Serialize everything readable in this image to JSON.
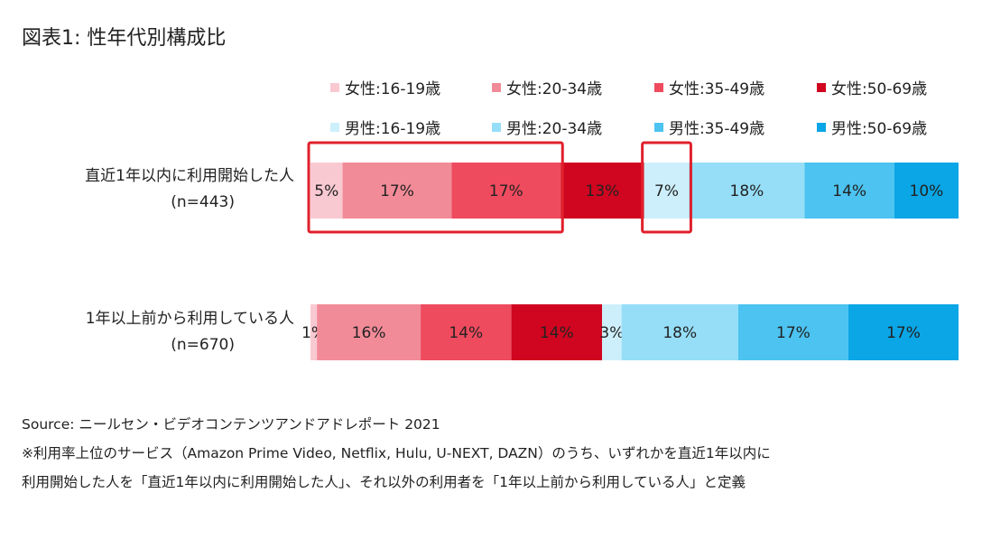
{
  "title": "図表1: 性年代別構成比",
  "chart_data": {
    "type": "bar",
    "stacked": "100%",
    "orientation": "horizontal",
    "categories": [
      {
        "label": "直近1年以内に利用開始した人",
        "n": "(n=443)"
      },
      {
        "label": "1年以上前から利用している人",
        "n": "(n=670)"
      }
    ],
    "series": [
      {
        "name": "女性:16-19歳",
        "color": "#f9c9d2",
        "values": [
          5,
          1
        ],
        "labels": [
          "5%",
          "1%"
        ]
      },
      {
        "name": "女性:20-34歳",
        "color": "#f28b98",
        "values": [
          17,
          16
        ],
        "labels": [
          "17%",
          "16%"
        ]
      },
      {
        "name": "女性:35-49歳",
        "color": "#ef4b5e",
        "values": [
          17,
          14
        ],
        "labels": [
          "17%",
          "14%"
        ]
      },
      {
        "name": "女性:50-69歳",
        "color": "#d0051f",
        "values": [
          13,
          14
        ],
        "labels": [
          "13%",
          "14%"
        ]
      },
      {
        "name": "男性:16-19歳",
        "color": "#cdeffc",
        "values": [
          7,
          3
        ],
        "labels": [
          "7%",
          "3%"
        ]
      },
      {
        "name": "男性:20-34歳",
        "color": "#96def8",
        "values": [
          18,
          18
        ],
        "labels": [
          "18%",
          "18%"
        ]
      },
      {
        "name": "男性:35-49歳",
        "color": "#4cc3f0",
        "values": [
          14,
          17
        ],
        "labels": [
          "14%",
          "17%"
        ]
      },
      {
        "name": "男性:50-69歳",
        "color": "#0aa6e6",
        "values": [
          10,
          17
        ],
        "labels": [
          "10%",
          "17%"
        ]
      }
    ],
    "highlights": [
      {
        "row": 0,
        "from_series": 0,
        "to_series": 2,
        "color": "#e0202c"
      },
      {
        "row": 0,
        "from_series": 4,
        "to_series": 4,
        "color": "#e0202c"
      }
    ],
    "legend_position": "top",
    "grid": false
  },
  "notes": {
    "source": "Source: ニールセン・ビデオコンテンツアンドアドレポート 2021",
    "note1": "※利用率上位のサービス（Amazon Prime Video, Netflix, Hulu, U-NEXT, DAZN）のうち、いずれかを直近1年以内に",
    "note2": "利用開始した人を「直近1年以内に利用開始した人」、それ以外の利用者を「1年以上前から利用している人」と定義"
  }
}
